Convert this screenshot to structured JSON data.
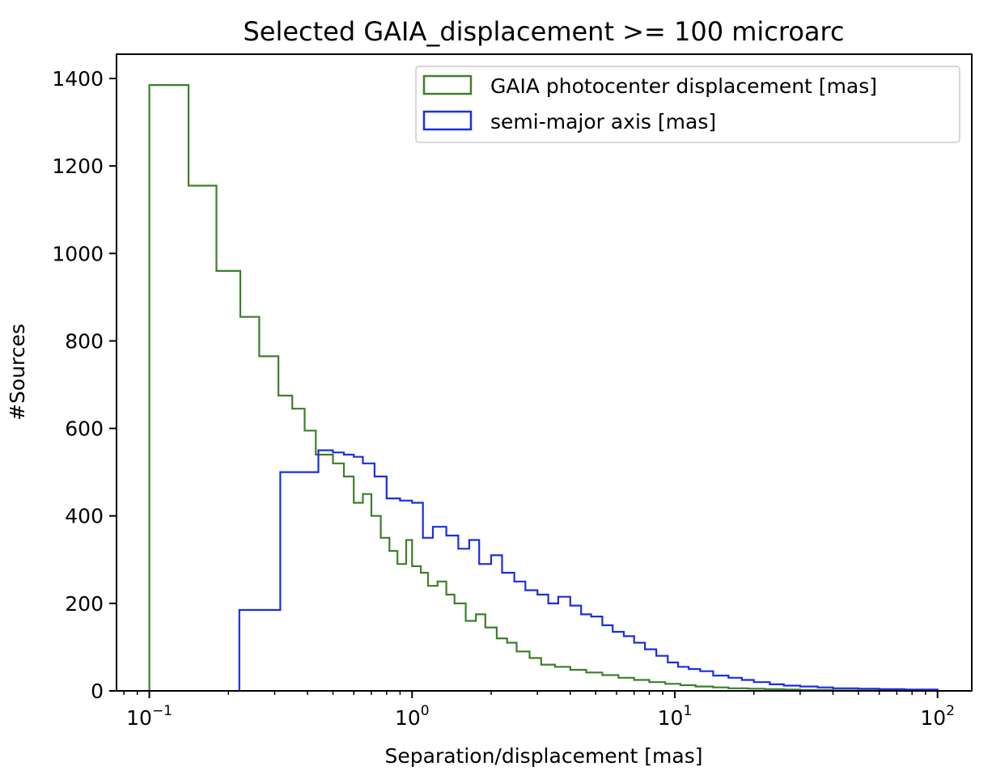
{
  "chart_data": {
    "type": "histogram-step",
    "title": "Selected GAIA_displacement >= 100 microarc",
    "xlabel": "Separation/displacement [mas]",
    "ylabel": "#Sources",
    "xscale": "log",
    "xlim": [
      0.075,
      135
    ],
    "ylim": [
      0,
      1400
    ],
    "ytick_values": [
      0,
      200,
      400,
      600,
      800,
      1000,
      1200,
      1400
    ],
    "ytick_labels": [
      "0",
      "200",
      "400",
      "600",
      "800",
      "1000",
      "1200",
      "1400"
    ],
    "xtick_values": [
      0.1,
      1,
      10,
      100
    ],
    "xtick_labels": [
      {
        "base": "10",
        "exp": "−1"
      },
      {
        "base": "10",
        "exp": "0"
      },
      {
        "base": "10",
        "exp": "1"
      },
      {
        "base": "10",
        "exp": "2"
      }
    ],
    "legend_position": "upper right",
    "series": [
      {
        "name": "GAIA photocenter displacement [mas]",
        "color": "#3d7f2a",
        "bin_edges": [
          0.1,
          0.141,
          0.18,
          0.222,
          0.262,
          0.31,
          0.35,
          0.39,
          0.43,
          0.5,
          0.55,
          0.6,
          0.65,
          0.7,
          0.76,
          0.82,
          0.88,
          0.95,
          1.0,
          1.08,
          1.15,
          1.25,
          1.35,
          1.45,
          1.6,
          1.75,
          1.9,
          2.1,
          2.3,
          2.5,
          2.8,
          3.1,
          3.5,
          4.0,
          4.6,
          5.3,
          6.1,
          7.0,
          8.0,
          9.2,
          10.5,
          12.0,
          14.0,
          16.0,
          19.0,
          22.0,
          26.0,
          30.0,
          35.0,
          40.0,
          50.0,
          60.0,
          75.0,
          100.0
        ],
        "counts": [
          1385,
          1155,
          960,
          855,
          765,
          675,
          645,
          595,
          540,
          520,
          490,
          430,
          450,
          400,
          350,
          320,
          290,
          345,
          285,
          270,
          240,
          250,
          220,
          200,
          160,
          175,
          145,
          120,
          110,
          90,
          75,
          60,
          55,
          48,
          42,
          36,
          30,
          25,
          20,
          16,
          13,
          10,
          8,
          6,
          5,
          4,
          3,
          2,
          2,
          1,
          1,
          1,
          0
        ]
      },
      {
        "name": "semi-major axis [mas]",
        "color": "#1a2ee0",
        "bin_edges": [
          0.22,
          0.315,
          0.44,
          0.5,
          0.55,
          0.6,
          0.65,
          0.72,
          0.8,
          0.9,
          1.0,
          1.1,
          1.2,
          1.35,
          1.5,
          1.65,
          1.8,
          2.0,
          2.2,
          2.45,
          2.7,
          3.0,
          3.3,
          3.6,
          4.0,
          4.4,
          4.8,
          5.3,
          5.8,
          6.4,
          7.0,
          7.7,
          8.5,
          9.4,
          10.3,
          11.3,
          12.5,
          14.0,
          16.0,
          18.0,
          20.0,
          23.0,
          26.0,
          30.0,
          35.0,
          40.0,
          50.0,
          60.0,
          75.0,
          100.0
        ],
        "counts": [
          185,
          500,
          550,
          545,
          540,
          535,
          520,
          490,
          440,
          435,
          430,
          350,
          375,
          355,
          325,
          345,
          290,
          310,
          270,
          250,
          230,
          220,
          200,
          215,
          195,
          175,
          170,
          150,
          135,
          125,
          110,
          95,
          80,
          65,
          55,
          50,
          45,
          35,
          30,
          25,
          20,
          15,
          12,
          10,
          8,
          6,
          5,
          4,
          3
        ]
      }
    ]
  }
}
